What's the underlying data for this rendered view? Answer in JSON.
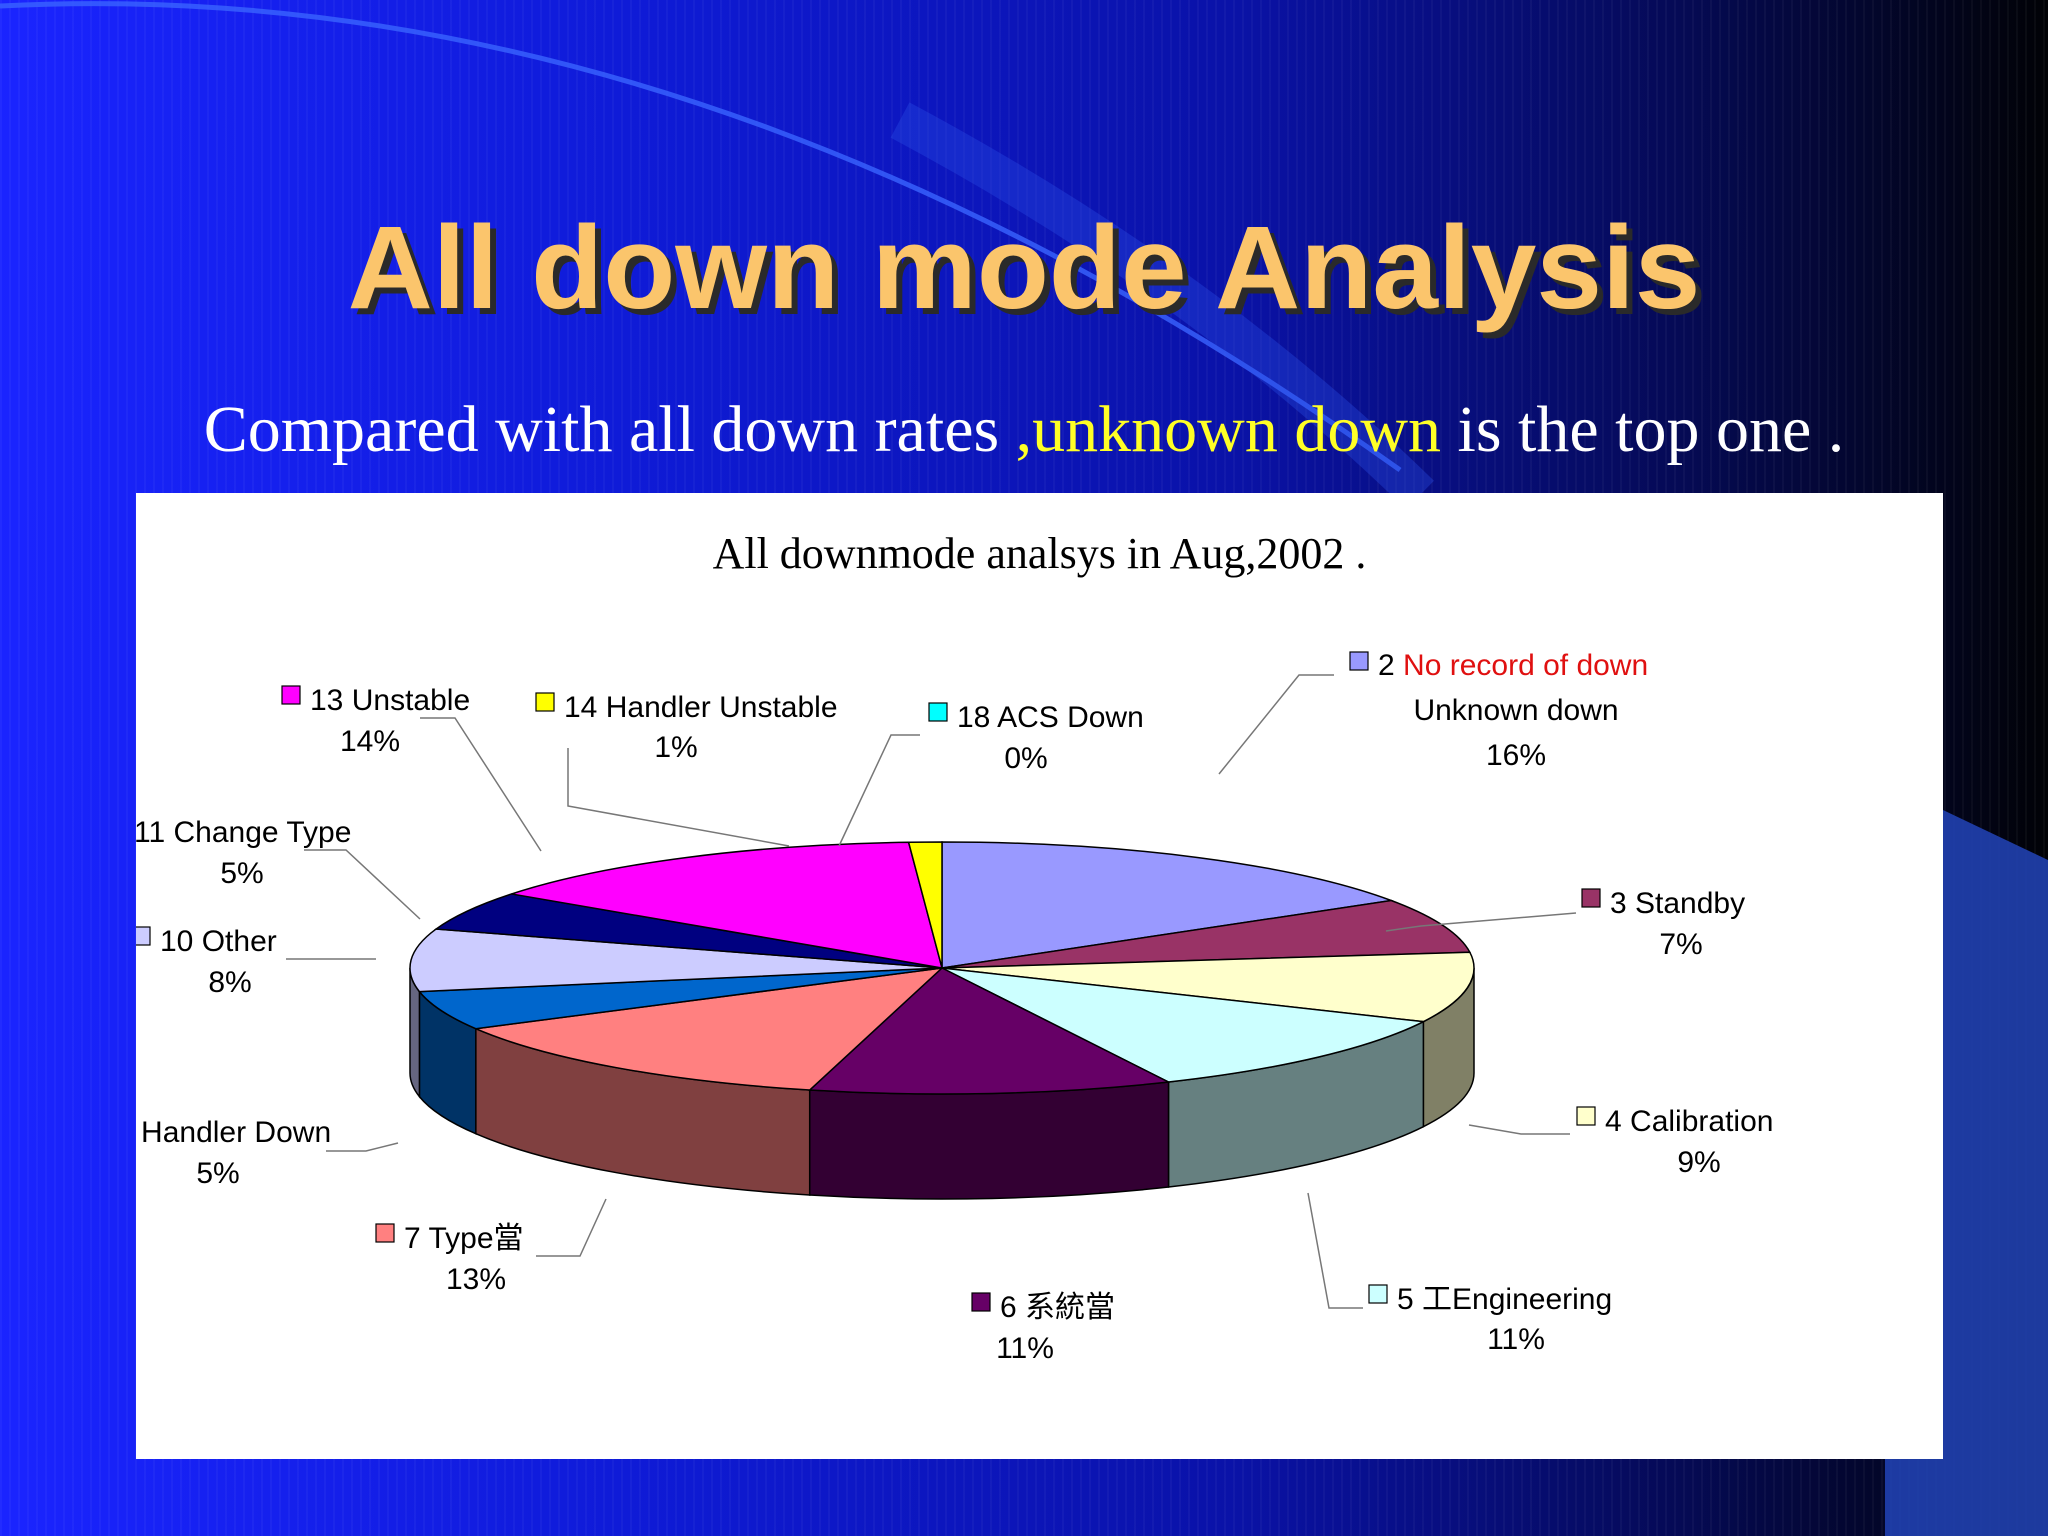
{
  "slide": {
    "title": "All down mode Analysis",
    "subtitle_parts": [
      "Compared with all down rates ",
      ",unknown down",
      " is the top one ."
    ],
    "highlight_color": "#ffff26",
    "title_color": "#fbc56c"
  },
  "chart_data": {
    "type": "pie",
    "title": "All downmode analsys in Aug,2002 .",
    "three_d": true,
    "slices": [
      {
        "id": "2",
        "label_lines": [
          "No record of down",
          "Unknown down"
        ],
        "percent_text": "16%",
        "value": 16,
        "color": "#9999ff",
        "label_color": "#e01010"
      },
      {
        "id": "3",
        "label_lines": [
          "Standby"
        ],
        "percent_text": "7%",
        "value": 7,
        "color": "#993366"
      },
      {
        "id": "4",
        "label_lines": [
          "Calibration"
        ],
        "percent_text": "9%",
        "value": 9,
        "color": "#ffffcc"
      },
      {
        "id": "5",
        "label_lines": [
          "工Engineering"
        ],
        "percent_text": "11%",
        "value": 11,
        "color": "#ccffff"
      },
      {
        "id": "6",
        "label_lines": [
          "系統當"
        ],
        "percent_text": "11%",
        "value": 11,
        "color": "#660066"
      },
      {
        "id": "7",
        "label_lines": [
          "Type當"
        ],
        "percent_text": "13%",
        "value": 13,
        "color": "#ff8080"
      },
      {
        "id": "8",
        "label_lines": [
          "Handler Down"
        ],
        "percent_text": "5%",
        "value": 5,
        "color": "#0066cc"
      },
      {
        "id": "10",
        "label_lines": [
          "Other"
        ],
        "percent_text": "8%",
        "value": 8,
        "color": "#ccccff"
      },
      {
        "id": "11",
        "label_lines": [
          "Change Type"
        ],
        "percent_text": "5%",
        "value": 5,
        "color": "#000080"
      },
      {
        "id": "13",
        "label_lines": [
          "Unstable"
        ],
        "percent_text": "14%",
        "value": 14,
        "color": "#ff00ff"
      },
      {
        "id": "14",
        "label_lines": [
          "Handler Unstable"
        ],
        "percent_text": "1%",
        "value": 1,
        "color": "#ffff00"
      },
      {
        "id": "18",
        "label_lines": [
          "ACS Down"
        ],
        "percent_text": "0%",
        "value": 0,
        "color": "#00ffff"
      }
    ]
  }
}
